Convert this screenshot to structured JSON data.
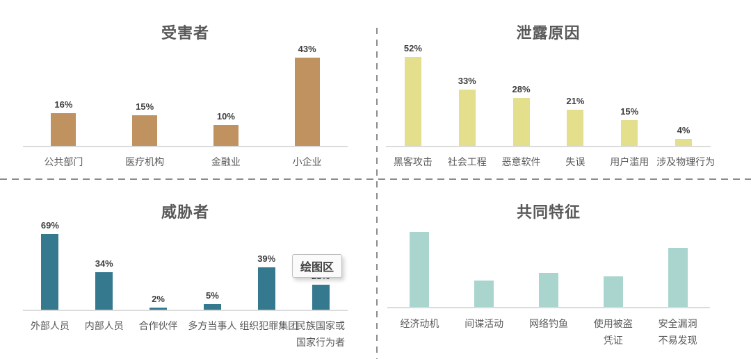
{
  "page": {
    "background": "#ffffff",
    "divider_color": "#8c8c8c",
    "divider_style": "dashed"
  },
  "tooltip": {
    "label": "绘图区"
  },
  "chart_data": [
    {
      "id": "victims",
      "type": "bar",
      "title": "受害者",
      "categories": [
        "公共部门",
        "医疗机构",
        "金融业",
        "小企业"
      ],
      "values": [
        16,
        15,
        10,
        43
      ],
      "value_labels": [
        "16%",
        "15%",
        "10%",
        "43%"
      ],
      "value_labels_visible": true,
      "bar_color": "#bf9260",
      "xlabel": "",
      "ylabel": "",
      "ylim": [
        0,
        50
      ],
      "grid": false,
      "legend": false
    },
    {
      "id": "breach-causes",
      "type": "bar",
      "title": "泄露原因",
      "categories": [
        "黑客攻击",
        "社会工程",
        "恶意软件",
        "失误",
        "用户滥用",
        "涉及物理行为"
      ],
      "values": [
        52,
        33,
        28,
        21,
        15,
        4
      ],
      "value_labels": [
        "52%",
        "33%",
        "28%",
        "21%",
        "15%",
        "4%"
      ],
      "value_labels_visible": true,
      "bar_color": "#e3df8d",
      "xlabel": "",
      "ylabel": "",
      "ylim": [
        0,
        60
      ],
      "grid": false,
      "legend": false
    },
    {
      "id": "threat-actors",
      "type": "bar",
      "title": "威胁者",
      "categories": [
        "外部人员",
        "内部人员",
        "合作伙伴",
        "多方当事人",
        "组织犯罪集团",
        "民族国家或\n国家行为者"
      ],
      "values": [
        69,
        34,
        2,
        5,
        39,
        23
      ],
      "value_labels": [
        "69%",
        "34%",
        "2%",
        "5%",
        "39%",
        "23%"
      ],
      "value_labels_visible": true,
      "value_label_note": "last label partially hidden behind tooltip",
      "bar_color": "#35798f",
      "xlabel": "",
      "ylabel": "",
      "ylim": [
        0,
        80
      ],
      "grid": false,
      "legend": false
    },
    {
      "id": "common-traits",
      "type": "bar",
      "title": "共同特征",
      "categories": [
        "经济动机",
        "间谍活动",
        "网络钓鱼",
        "使用被盗\n凭证",
        "安全漏洞\n不易发现"
      ],
      "values": [
        71,
        25,
        32,
        29,
        56
      ],
      "values_estimated": true,
      "value_labels": [],
      "value_labels_visible": false,
      "bar_color": "#a9d5ce",
      "xlabel": "",
      "ylabel": "",
      "ylim": [
        0,
        80
      ],
      "grid": false,
      "legend": false
    }
  ]
}
